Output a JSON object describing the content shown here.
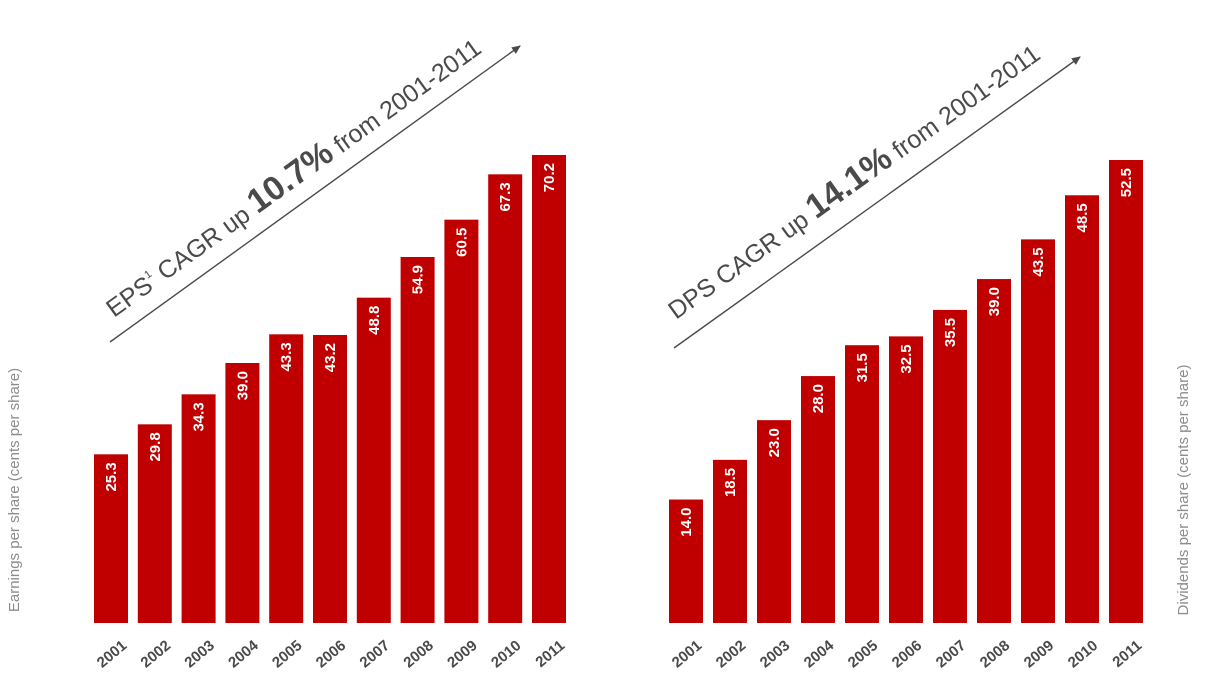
{
  "chart_data": [
    {
      "type": "bar",
      "categories": [
        "2001",
        "2002",
        "2003",
        "2004",
        "2005",
        "2006",
        "2007",
        "2008",
        "2009",
        "2010",
        "2011"
      ],
      "values": [
        25.3,
        29.8,
        34.3,
        39.0,
        43.3,
        43.2,
        48.8,
        54.9,
        60.5,
        67.3,
        70.2
      ],
      "value_labels": [
        "25.3",
        "29.8",
        "34.3",
        "39.0",
        "43.3",
        "43.2",
        "48.8",
        "54.9",
        "60.5",
        "67.3",
        "70.2"
      ],
      "ylabel": "Earnings per share (cents per share)",
      "annotation": {
        "prefix": "EPS",
        "superscript": "1",
        "middle": " CAGR up ",
        "highlight": "10.7%",
        "suffix": " from 2001-2011"
      },
      "ylim": [
        0,
        70.2
      ],
      "bar_color": "#c00000",
      "ylabel_side": "left"
    },
    {
      "type": "bar",
      "categories": [
        "2001",
        "2002",
        "2003",
        "2004",
        "2005",
        "2006",
        "2007",
        "2008",
        "2009",
        "2010",
        "2011"
      ],
      "values": [
        14.0,
        18.5,
        23.0,
        28.0,
        31.5,
        32.5,
        35.5,
        39.0,
        43.5,
        48.5,
        52.5
      ],
      "value_labels": [
        "14.0",
        "18.5",
        "23.0",
        "28.0",
        "31.5",
        "32.5",
        "35.5",
        "39.0",
        "43.5",
        "48.5",
        "52.5"
      ],
      "ylabel": "Dividends per share (cents per share)",
      "annotation": {
        "prefix": "DPS",
        "superscript": "",
        "middle": " CAGR up ",
        "highlight": "14.1%",
        "suffix": " from 2001-2011"
      },
      "ylim": [
        0,
        52.5
      ],
      "bar_color": "#c00000",
      "ylabel_side": "right"
    }
  ]
}
